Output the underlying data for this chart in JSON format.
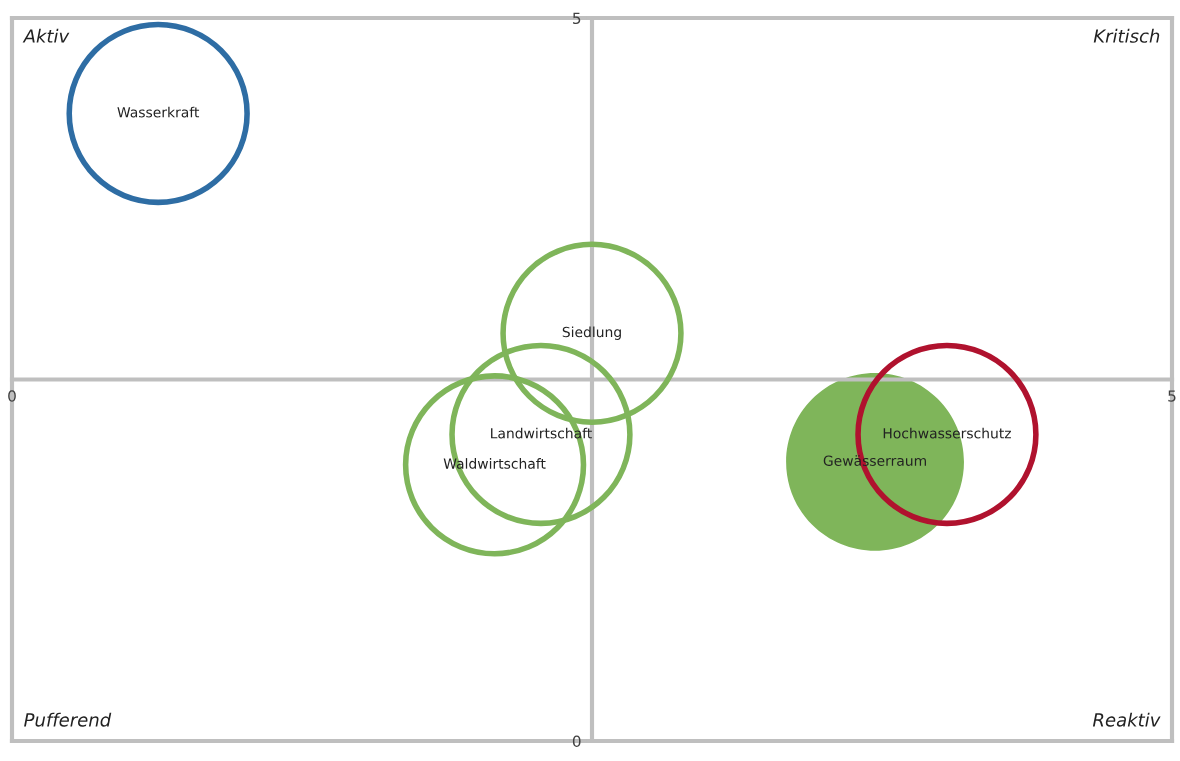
{
  "chart_data": {
    "type": "bubble",
    "xlim": [
      0,
      5
    ],
    "ylim": [
      0,
      5
    ],
    "xticks": [
      0,
      5
    ],
    "yticks": [
      0,
      5
    ],
    "grid": false,
    "legend": false,
    "series": [
      {
        "name": "Wasserkraft",
        "color": "#2e6da4",
        "x": [
          0.63
        ],
        "values": [
          4.34
        ],
        "sizes": [
          1
        ]
      },
      {
        "name": "Siedlung",
        "color": "#7fb55a",
        "x": [
          2.5
        ],
        "values": [
          2.82
        ],
        "sizes": [
          1
        ]
      },
      {
        "name": "Landwirtschaft",
        "color": "#7fb55a",
        "x": [
          2.28
        ],
        "values": [
          2.12
        ],
        "sizes": [
          1
        ]
      },
      {
        "name": "Waldwirtschaft",
        "color": "#7fb55a",
        "x": [
          2.08
        ],
        "values": [
          1.91
        ],
        "sizes": [
          1
        ]
      },
      {
        "name": "Gewässerraum",
        "color": "#7fb55a",
        "x": [
          3.72
        ],
        "values": [
          1.93
        ],
        "sizes": [
          1
        ],
        "type": "scatter"
      },
      {
        "name": "Hochwasserschutz",
        "color": "#b0122e",
        "x": [
          4.03
        ],
        "values": [
          2.12
        ],
        "sizes": [
          1
        ]
      }
    ],
    "annotations": [
      "Aktiv",
      "Kritisch",
      "Pufferend",
      "Reaktiv"
    ]
  }
}
